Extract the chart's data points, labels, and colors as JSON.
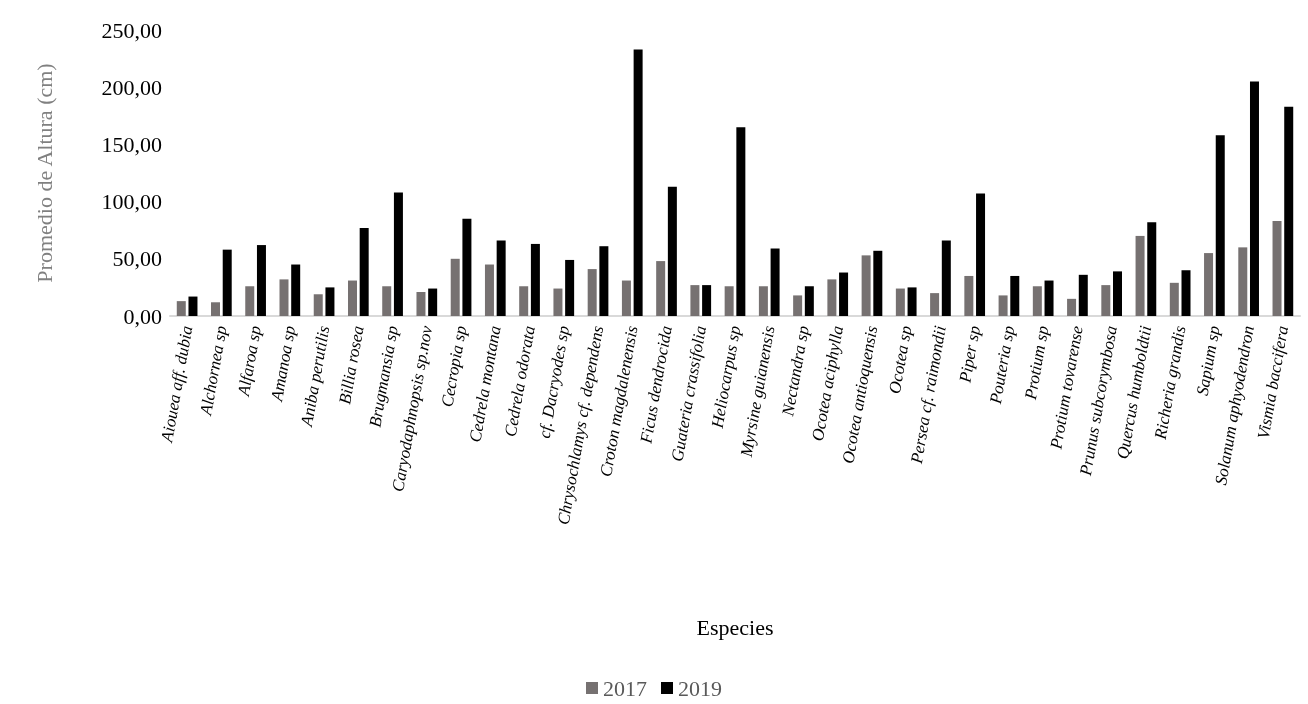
{
  "chart_data": {
    "type": "bar",
    "xlabel": "Especies",
    "ylabel": "Promedio de Altura (cm)",
    "categories": [
      "Aiouea aff. dubia",
      "Alchornea sp",
      "Alfaroa sp",
      "Amanoa sp",
      "Aniba perutilis",
      "Billia rosea",
      "Brugmansia sp",
      "Caryodaphnopsis sp.nov",
      "Cecropia sp",
      "Cedrela montana",
      "Cedrela odorata",
      "cf. Dacryodes sp",
      "Chrysochlamys cf. dependens",
      "Croton magdalenensis",
      "Ficus dendrocida",
      "Guateria crassifolia",
      "Heliocarpus sp",
      "Myrsine guianensis",
      "Nectandra sp",
      "Ocotea aciphylla",
      "Ocotea antioquensis",
      "Ocotea sp",
      "Persea cf. raimondii",
      "Piper sp",
      "Pouteria sp",
      "Protium sp",
      "Protium tovarense",
      "Prunus subcorymbosa",
      "Quercus humboldtii",
      "Richeria grandis",
      "Sapium sp",
      "Solanum aphyodendron",
      "Vismia baccifera"
    ],
    "series": [
      {
        "name": "2017",
        "color": "#767171",
        "values": [
          13,
          12,
          26,
          32,
          19,
          31,
          26,
          21,
          50,
          45,
          26,
          24,
          41,
          31,
          48,
          27,
          26,
          26,
          18,
          32,
          53,
          24,
          20,
          35,
          18,
          26,
          15,
          27,
          70,
          29,
          55,
          60,
          83
        ]
      },
      {
        "name": "2019",
        "color": "#000000",
        "values": [
          17,
          58,
          62,
          45,
          25,
          77,
          108,
          24,
          85,
          66,
          63,
          49,
          61,
          233,
          113,
          27,
          165,
          59,
          26,
          38,
          57,
          25,
          66,
          107,
          35,
          31,
          36,
          39,
          82,
          40,
          158,
          205,
          183
        ]
      }
    ],
    "ylim": [
      0,
      250
    ],
    "yticks": [
      {
        "value": 0,
        "label": "0,00"
      },
      {
        "value": 50,
        "label": "50,00"
      },
      {
        "value": 100,
        "label": "100,00"
      },
      {
        "value": 150,
        "label": "150,00"
      },
      {
        "value": 200,
        "label": "200,00"
      },
      {
        "value": 250,
        "label": "250,00"
      }
    ],
    "grid": false,
    "legend": "bottom"
  }
}
